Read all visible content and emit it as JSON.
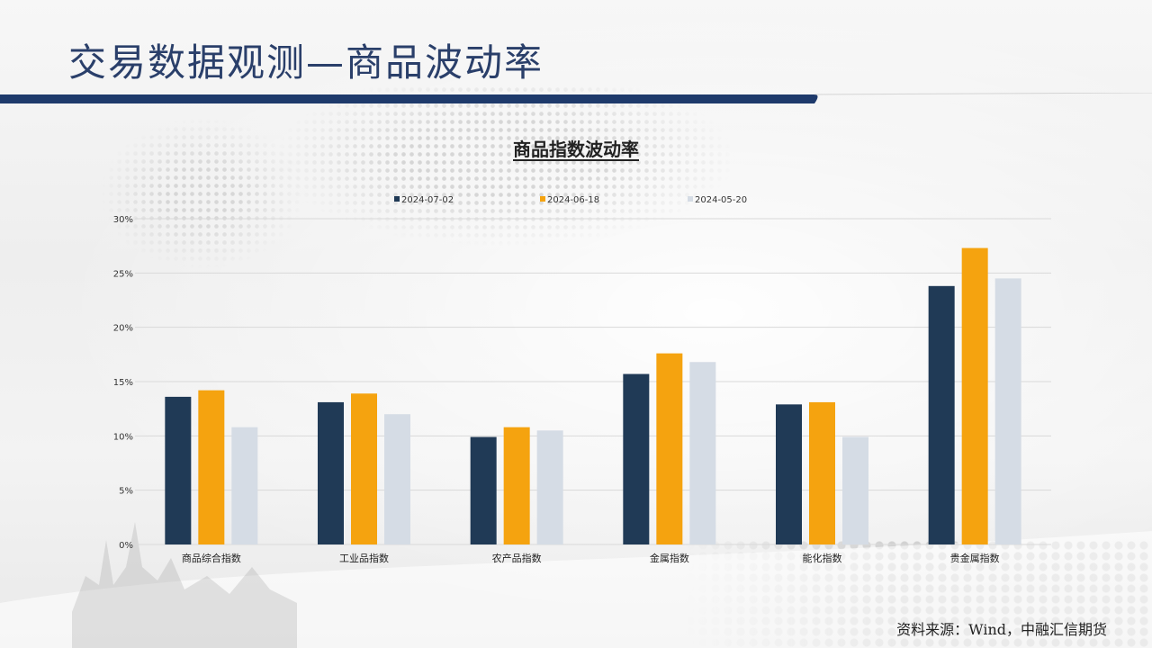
{
  "slide": {
    "title": "交易数据观测—商品波动率",
    "source": "资料来源：Wind，中融汇信期货"
  },
  "colors": {
    "title_text": "#2a3f6a",
    "title_bar": "#1e3a6b"
  },
  "chart_data": {
    "type": "bar",
    "title": "商品指数波动率",
    "categories": [
      "商品综合指数",
      "工业品指数",
      "农产品指数",
      "金属指数",
      "能化指数",
      "贵金属指数"
    ],
    "series": [
      {
        "name": "2024-07-02",
        "color": "#203a56",
        "values": [
          13.6,
          13.1,
          9.9,
          15.7,
          12.9,
          23.8
        ]
      },
      {
        "name": "2024-06-18",
        "color": "#f5a30f",
        "values": [
          14.2,
          13.9,
          10.8,
          17.6,
          13.1,
          27.3
        ]
      },
      {
        "name": "2024-05-20",
        "color": "#d5dce5",
        "values": [
          10.8,
          12.0,
          10.5,
          16.8,
          9.9,
          24.5
        ]
      }
    ],
    "yticks": [
      "0%",
      "5%",
      "10%",
      "15%",
      "20%",
      "25%",
      "30%"
    ],
    "ylim": [
      0,
      30
    ],
    "grid": true,
    "legend": "top-center"
  }
}
